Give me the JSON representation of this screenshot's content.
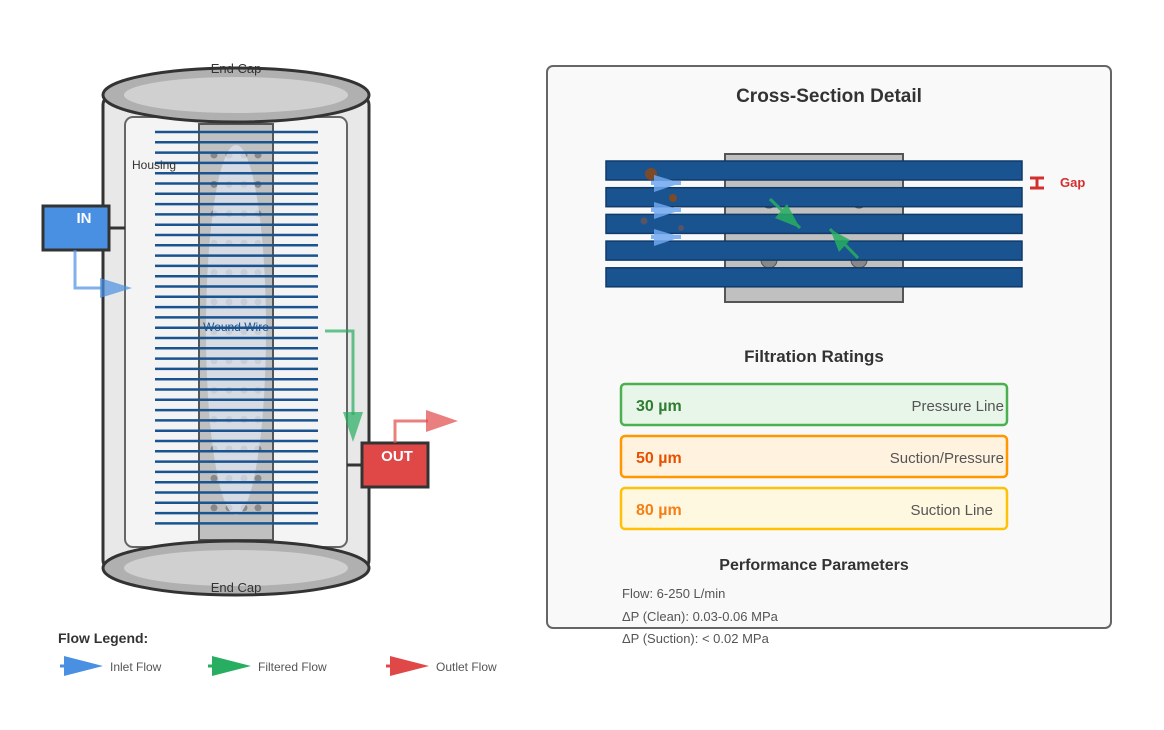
{
  "filter": {
    "top_cap_label": "End Cap",
    "bottom_cap_label": "End Cap",
    "housing_label": "Housing",
    "element_label": "Wound Wire",
    "inlet_label": "IN",
    "outlet_label": "OUT"
  },
  "cross_section": {
    "title": "Cross-Section Detail",
    "gap_label": "Gap"
  },
  "ratings": {
    "title": "Filtration Ratings",
    "items": [
      {
        "value": "30 µm",
        "usage": "Pressure Line",
        "color": "#4caf50",
        "bg": "#e8f5e9",
        "text_color": "#2e7d32"
      },
      {
        "value": "50 µm",
        "usage": "Suction/Pressure",
        "color": "#ff9800",
        "bg": "#fff3e0",
        "text_color": "#e65100"
      },
      {
        "value": "80 µm",
        "usage": "Suction Line",
        "color": "#ffc107",
        "bg": "#fff8e1",
        "text_color": "#f57f17"
      }
    ]
  },
  "performance": {
    "title": "Performance Parameters",
    "lines": [
      "Flow: 6-250 L/min",
      "ΔP (Clean): 0.03-0.06 MPa",
      "ΔP (Suction): < 0.02 MPa"
    ]
  },
  "legend": {
    "title": "Flow Legend:",
    "items": [
      {
        "label": "Inlet Flow",
        "color": "#4a90e2"
      },
      {
        "label": "Filtered Flow",
        "color": "#27ae60"
      },
      {
        "label": "Outlet Flow",
        "color": "#e04848"
      }
    ]
  },
  "colors": {
    "wire": "#1a5490",
    "inlet": "#4a90e2",
    "outlet": "#e04848",
    "filtered": "#27ae60",
    "gap": "#d32f2f"
  }
}
